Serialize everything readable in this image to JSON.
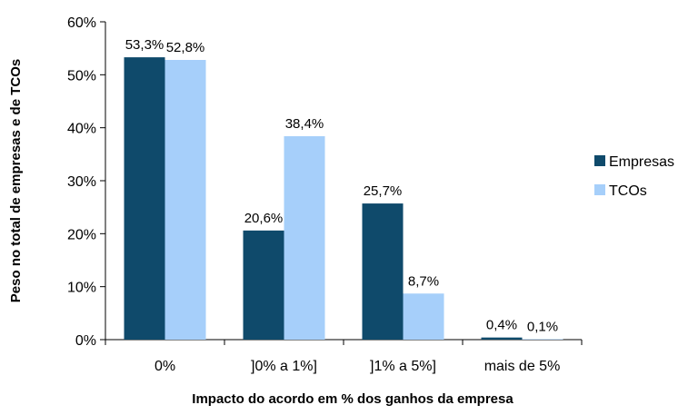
{
  "chart_data": {
    "type": "bar",
    "title": "",
    "xlabel": "Impacto do acordo em % dos ganhos da empresa",
    "ylabel": "Peso no total de empresas e de TCOs",
    "categories": [
      "0%",
      "]0% a 1%]",
      "]1% a 5%]",
      "mais de 5%"
    ],
    "ylim": [
      0,
      60
    ],
    "yticks": [
      0,
      10,
      20,
      30,
      40,
      50,
      60
    ],
    "ytick_labels": [
      "0%",
      "10%",
      "20%",
      "30%",
      "40%",
      "50%",
      "60%"
    ],
    "grid": false,
    "legend_position": "right",
    "series": [
      {
        "name": "Empresas",
        "color": "#0f4a6b",
        "values": [
          53.3,
          20.6,
          25.7,
          0.4
        ],
        "labels": [
          "53,3%",
          "20,6%",
          "25,7%",
          "0,4%"
        ]
      },
      {
        "name": "TCOs",
        "color": "#a6cffa",
        "values": [
          52.8,
          38.4,
          8.7,
          0.1
        ],
        "labels": [
          "52,8%",
          "38,4%",
          "8,7%",
          "0,1%"
        ]
      }
    ]
  }
}
